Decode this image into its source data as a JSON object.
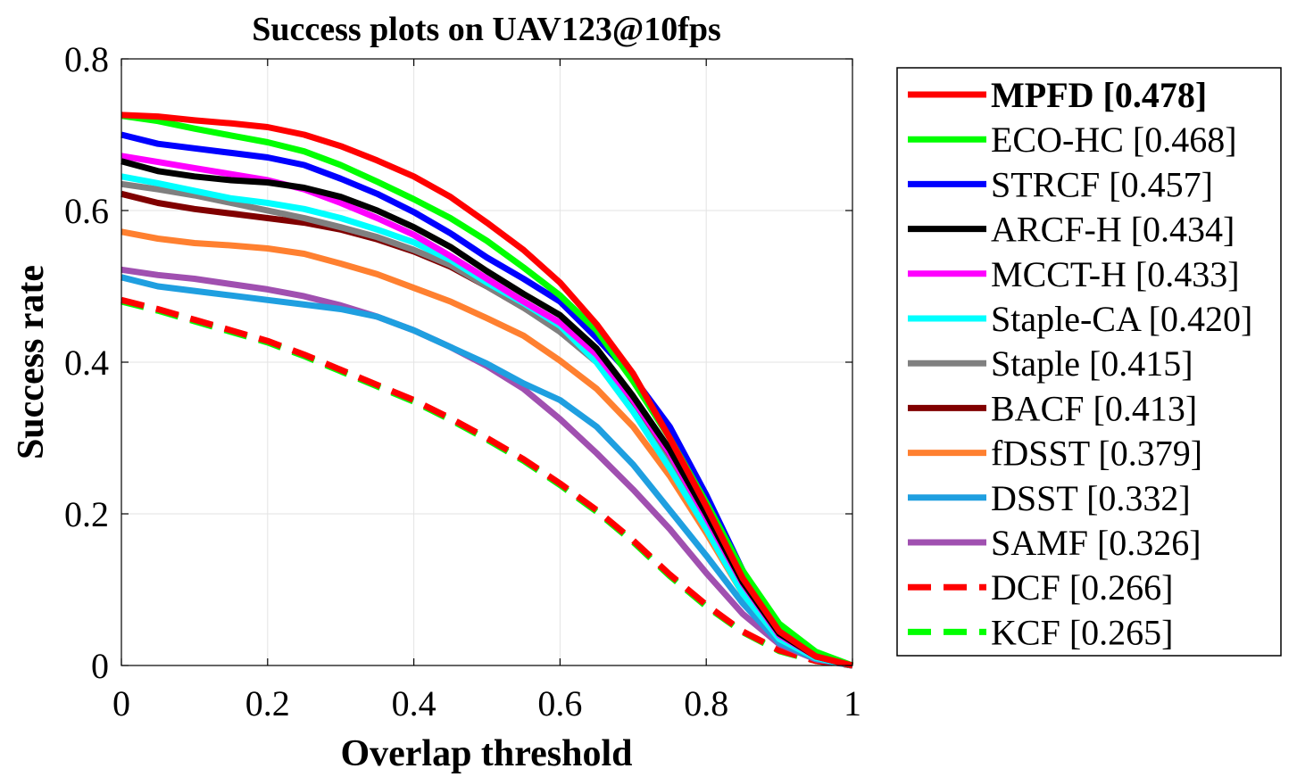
{
  "chart_data": {
    "type": "line",
    "title": "Success plots on UAV123@10fps",
    "xlabel": "Overlap threshold",
    "ylabel": "Success rate",
    "xlim": [
      0,
      1
    ],
    "ylim": [
      0,
      0.8
    ],
    "xticks": [
      0,
      0.2,
      0.4,
      0.6,
      0.8,
      1
    ],
    "xtick_labels": [
      "0",
      "0.2",
      "0.4",
      "0.6",
      "0.8",
      "1"
    ],
    "yticks": [
      0,
      0.2,
      0.4,
      0.6,
      0.8
    ],
    "ytick_labels": [
      "0",
      "0.2",
      "0.4",
      "0.6",
      "0.8"
    ],
    "grid": true,
    "legend_position": "outside-right",
    "x": [
      0,
      0.05,
      0.1,
      0.15,
      0.2,
      0.25,
      0.3,
      0.35,
      0.4,
      0.45,
      0.5,
      0.55,
      0.6,
      0.65,
      0.7,
      0.75,
      0.8,
      0.85,
      0.9,
      0.95,
      1.0
    ],
    "series": [
      {
        "name": "MPFD",
        "score": "0.478",
        "legend_label": "MPFD [0.478]",
        "color": "#ff0000",
        "dash": "solid",
        "bold": true,
        "values": [
          0.726,
          0.724,
          0.719,
          0.715,
          0.71,
          0.7,
          0.685,
          0.666,
          0.645,
          0.618,
          0.584,
          0.548,
          0.505,
          0.45,
          0.385,
          0.3,
          0.21,
          0.115,
          0.045,
          0.012,
          0.0
        ]
      },
      {
        "name": "ECO-HC",
        "score": "0.468",
        "legend_label": "ECO-HC [0.468]",
        "color": "#00ff00",
        "dash": "solid",
        "bold": false,
        "values": [
          0.725,
          0.718,
          0.708,
          0.699,
          0.69,
          0.678,
          0.66,
          0.638,
          0.615,
          0.59,
          0.56,
          0.525,
          0.488,
          0.442,
          0.375,
          0.3,
          0.215,
          0.125,
          0.055,
          0.018,
          0.0
        ]
      },
      {
        "name": "STRCF",
        "score": "0.457",
        "legend_label": "STRCF [0.457]",
        "color": "#0000ff",
        "dash": "solid",
        "bold": false,
        "values": [
          0.7,
          0.688,
          0.682,
          0.676,
          0.67,
          0.66,
          0.642,
          0.622,
          0.598,
          0.57,
          0.538,
          0.51,
          0.48,
          0.432,
          0.38,
          0.315,
          0.225,
          0.125,
          0.05,
          0.015,
          0.0
        ]
      },
      {
        "name": "ARCF-H",
        "score": "0.434",
        "legend_label": "ARCF-H [0.434]",
        "color": "#000000",
        "dash": "solid",
        "bold": false,
        "values": [
          0.665,
          0.652,
          0.645,
          0.64,
          0.637,
          0.63,
          0.618,
          0.6,
          0.578,
          0.552,
          0.52,
          0.49,
          0.462,
          0.418,
          0.355,
          0.285,
          0.2,
          0.11,
          0.042,
          0.012,
          0.0
        ]
      },
      {
        "name": "MCCT-H",
        "score": "0.433",
        "legend_label": "MCCT-H [0.433]",
        "color": "#ff00ff",
        "dash": "solid",
        "bold": false,
        "values": [
          0.672,
          0.664,
          0.656,
          0.648,
          0.64,
          0.628,
          0.61,
          0.59,
          0.568,
          0.54,
          0.51,
          0.48,
          0.452,
          0.41,
          0.35,
          0.28,
          0.195,
          0.108,
          0.04,
          0.012,
          0.0
        ]
      },
      {
        "name": "Staple-CA",
        "score": "0.420",
        "legend_label": "Staple-CA [0.420]",
        "color": "#00ffff",
        "dash": "solid",
        "bold": false,
        "values": [
          0.645,
          0.636,
          0.626,
          0.616,
          0.61,
          0.602,
          0.59,
          0.575,
          0.558,
          0.535,
          0.505,
          0.478,
          0.448,
          0.4,
          0.335,
          0.26,
          0.18,
          0.095,
          0.035,
          0.01,
          0.0
        ]
      },
      {
        "name": "Staple",
        "score": "0.415",
        "legend_label": "Staple [0.415]",
        "color": "#808080",
        "dash": "solid",
        "bold": false,
        "values": [
          0.635,
          0.628,
          0.62,
          0.61,
          0.6,
          0.59,
          0.578,
          0.565,
          0.548,
          0.528,
          0.5,
          0.472,
          0.44,
          0.4,
          0.335,
          0.265,
          0.185,
          0.1,
          0.036,
          0.01,
          0.0
        ]
      },
      {
        "name": "BACF",
        "score": "0.413",
        "legend_label": "BACF [0.413]",
        "color": "#800000",
        "dash": "solid",
        "bold": false,
        "values": [
          0.622,
          0.61,
          0.602,
          0.596,
          0.59,
          0.584,
          0.575,
          0.562,
          0.546,
          0.526,
          0.5,
          0.472,
          0.442,
          0.402,
          0.34,
          0.27,
          0.19,
          0.105,
          0.038,
          0.011,
          0.0
        ]
      },
      {
        "name": "fDSST",
        "score": "0.379",
        "legend_label": "fDSST [0.379]",
        "color": "#ff8030",
        "dash": "solid",
        "bold": false,
        "values": [
          0.572,
          0.563,
          0.557,
          0.554,
          0.55,
          0.543,
          0.53,
          0.516,
          0.498,
          0.48,
          0.458,
          0.435,
          0.402,
          0.365,
          0.315,
          0.25,
          0.175,
          0.095,
          0.035,
          0.01,
          0.0
        ]
      },
      {
        "name": "DSST",
        "score": "0.332",
        "legend_label": "DSST [0.332]",
        "color": "#1f9fe0",
        "dash": "solid",
        "bold": false,
        "values": [
          0.512,
          0.5,
          0.494,
          0.488,
          0.482,
          0.476,
          0.47,
          0.46,
          0.442,
          0.42,
          0.398,
          0.372,
          0.35,
          0.315,
          0.265,
          0.205,
          0.145,
          0.082,
          0.03,
          0.009,
          0.0
        ]
      },
      {
        "name": "SAMF",
        "score": "0.326",
        "legend_label": "SAMF [0.326]",
        "color": "#a050b0",
        "dash": "solid",
        "bold": false,
        "values": [
          0.522,
          0.515,
          0.51,
          0.503,
          0.496,
          0.487,
          0.475,
          0.46,
          0.442,
          0.42,
          0.395,
          0.365,
          0.325,
          0.28,
          0.232,
          0.18,
          0.122,
          0.068,
          0.028,
          0.008,
          0.0
        ]
      },
      {
        "name": "DCF",
        "score": "0.266",
        "legend_label": "DCF [0.266]",
        "color": "#ff0000",
        "dash": "dashed",
        "bold": false,
        "values": [
          0.482,
          0.47,
          0.456,
          0.442,
          0.428,
          0.41,
          0.39,
          0.37,
          0.35,
          0.326,
          0.3,
          0.272,
          0.24,
          0.205,
          0.165,
          0.12,
          0.08,
          0.045,
          0.02,
          0.006,
          0.0
        ]
      },
      {
        "name": "KCF",
        "score": "0.265",
        "legend_label": "KCF [0.265]",
        "color": "#00ff00",
        "dash": "dashed",
        "bold": false,
        "values": [
          0.48,
          0.468,
          0.454,
          0.44,
          0.426,
          0.408,
          0.388,
          0.368,
          0.348,
          0.324,
          0.298,
          0.27,
          0.238,
          0.203,
          0.163,
          0.118,
          0.078,
          0.044,
          0.019,
          0.006,
          0.0
        ]
      }
    ]
  }
}
